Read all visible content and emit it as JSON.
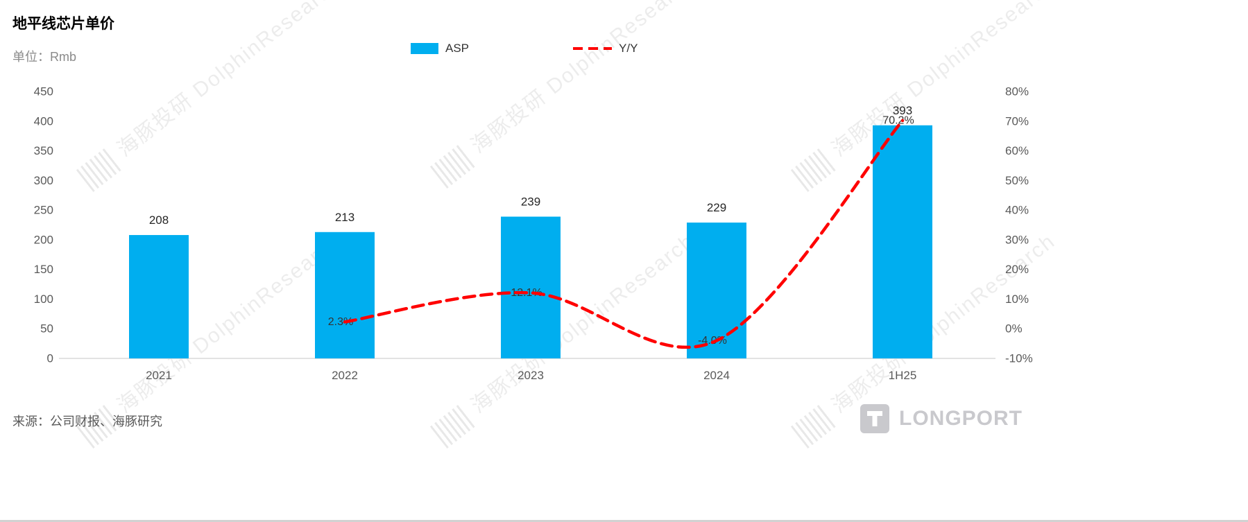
{
  "title": "地平线芯片单价",
  "unit_label": "单位：Rmb",
  "source": "来源：公司财报、海豚研究",
  "watermark_text": "海豚投研 DolphinResearch",
  "logo_text": "LONGPORT",
  "colors": {
    "bar": "#00AEEF",
    "line": "#FF0000",
    "axis_text": "#595959",
    "baseline": "#d9d9d9"
  },
  "legend": {
    "asp_label": "ASP",
    "yy_label": "Y/Y"
  },
  "chart_data": {
    "type": "bar",
    "subtype": "bar+line-combo",
    "categories": [
      "2021",
      "2022",
      "2023",
      "2024",
      "1H25"
    ],
    "series": [
      {
        "name": "ASP",
        "type": "bar",
        "axis": "left",
        "color": "#00AEEF",
        "values": [
          208,
          213,
          239,
          229,
          393
        ]
      },
      {
        "name": "Y/Y",
        "type": "line",
        "style": "dashed",
        "axis": "right",
        "color": "#FF0000",
        "values": [
          null,
          2.3,
          12.1,
          -4.0,
          70.2
        ],
        "labels": [
          "",
          "2.3%",
          "12.1%",
          "-4.0%",
          "70.2%"
        ]
      }
    ],
    "left_axis": {
      "min": 0,
      "max": 450,
      "step": 50,
      "label": "Rmb"
    },
    "right_axis": {
      "min": -10,
      "max": 80,
      "step": 10,
      "unit": "%"
    },
    "grid": false,
    "legend_position": "top-center"
  }
}
